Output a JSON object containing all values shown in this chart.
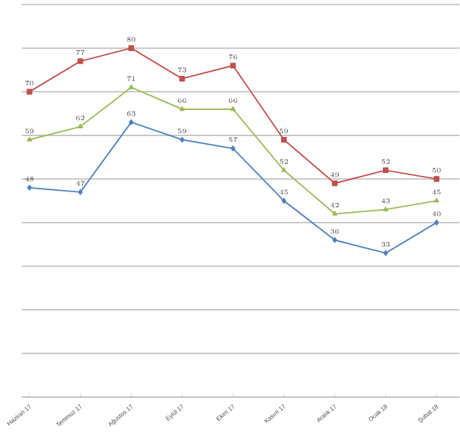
{
  "chart_data": {
    "type": "line",
    "categories": [
      "Haziran 17",
      "Temmuz 17",
      "Ağustos 17",
      "Eylül 17",
      "Ekim 17",
      "Kasım 17",
      "Aralık 17",
      "Ocak 18",
      "Şubat 18"
    ],
    "series": [
      {
        "color": "#c0504d",
        "marker": "square",
        "values": [
          70,
          77,
          80,
          73,
          76,
          59,
          49,
          52,
          50
        ]
      },
      {
        "color": "#9bbb59",
        "marker": "triangle",
        "values": [
          59,
          62,
          71,
          66,
          66,
          52,
          42,
          43,
          45
        ]
      },
      {
        "color": "#4f81bd",
        "marker": "diamond",
        "values": [
          48,
          47,
          63,
          59,
          57,
          45,
          36,
          33,
          40
        ]
      }
    ],
    "ylim": [
      0,
      90
    ],
    "yticks": [
      {
        "value": 0,
        "label": null
      },
      {
        "value": 10,
        "label": null
      },
      {
        "value": 20,
        "label": null
      },
      {
        "value": 30,
        "label": null
      },
      {
        "value": 40,
        "label": null
      },
      {
        "value": 50,
        "label": null
      },
      {
        "value": 60,
        "label": null
      },
      {
        "value": 70,
        "label": null
      },
      {
        "value": 80,
        "label": null
      },
      {
        "value": 90,
        "label": null
      }
    ],
    "grid": "y",
    "tick_labels": "x",
    "data_labels": true,
    "line_style": "solid"
  }
}
